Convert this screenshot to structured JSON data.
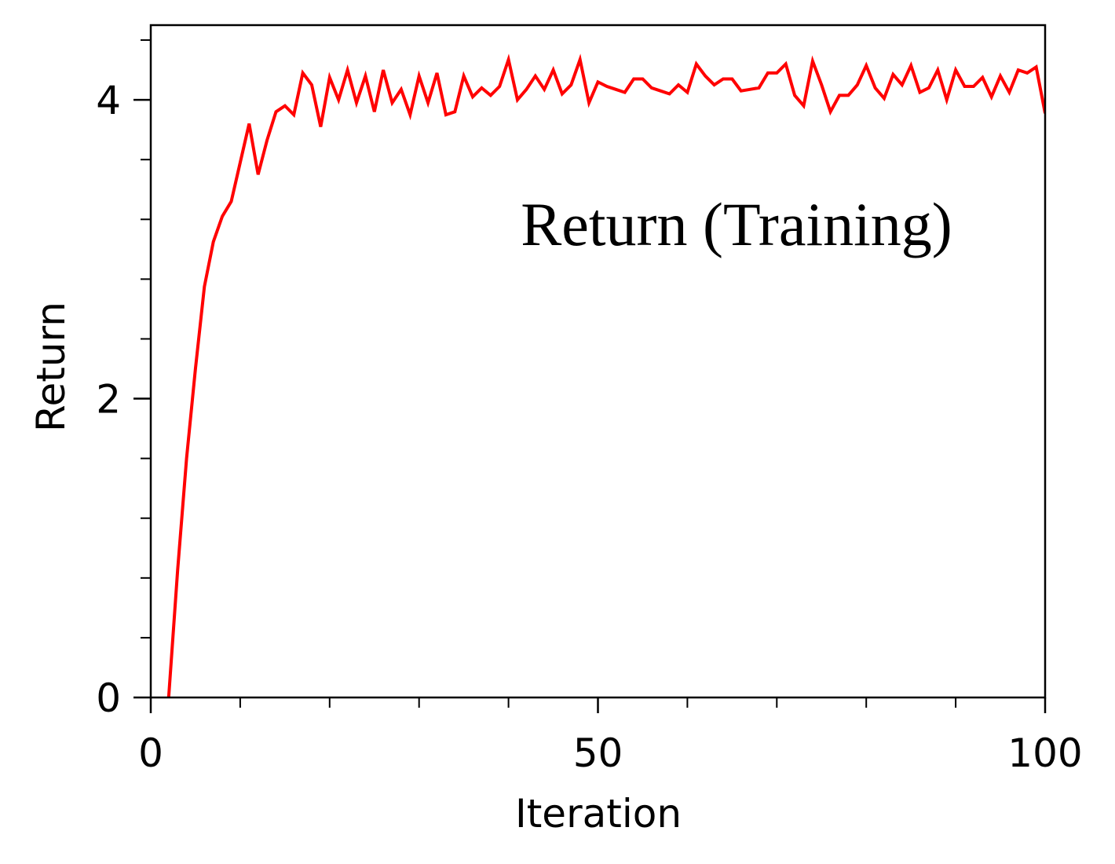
{
  "chart_data": {
    "type": "line",
    "title": "",
    "xlabel": "Iteration",
    "ylabel": "Return",
    "annotation": "Return (Training)",
    "xlim": [
      0,
      100
    ],
    "ylim": [
      0,
      4.5
    ],
    "x_ticks": [
      0,
      50,
      100
    ],
    "x_tick_labels": [
      "0",
      "50",
      "100"
    ],
    "x_minor_ticks": [
      10,
      20,
      30,
      40,
      60,
      70,
      80,
      90
    ],
    "y_ticks": [
      0,
      2,
      4
    ],
    "y_tick_labels": [
      "0",
      "2",
      "4"
    ],
    "y_minor_ticks": [
      0.4,
      0.8,
      1.2,
      1.6,
      2.4,
      2.8,
      3.2,
      3.6,
      4.4
    ],
    "grid": false,
    "series": [
      {
        "color": "#ff0000",
        "x": [
          2,
          3,
          4,
          5,
          6,
          7,
          8,
          9,
          10,
          11,
          12,
          13,
          14,
          15,
          16,
          17,
          18,
          19,
          20,
          21,
          22,
          23,
          24,
          25,
          26,
          27,
          28,
          29,
          30,
          31,
          32,
          33,
          34,
          35,
          36,
          37,
          38,
          39,
          40,
          41,
          42,
          43,
          44,
          45,
          46,
          47,
          48,
          49,
          50,
          51,
          52,
          53,
          54,
          55,
          56,
          57,
          58,
          59,
          60,
          61,
          62,
          63,
          64,
          65,
          66,
          67,
          68,
          69,
          70,
          71,
          72,
          73,
          74,
          75,
          76,
          77,
          78,
          79,
          80,
          81,
          82,
          83,
          84,
          85,
          86,
          87,
          88,
          89,
          90,
          91,
          92,
          93,
          94,
          95,
          96,
          97,
          98,
          99,
          100
        ],
        "y": [
          0.0,
          0.85,
          1.6,
          2.2,
          2.75,
          3.05,
          3.22,
          3.32,
          3.58,
          3.84,
          3.5,
          3.73,
          3.92,
          3.96,
          3.9,
          4.18,
          4.1,
          3.82,
          4.15,
          4.0,
          4.2,
          3.98,
          4.16,
          3.92,
          4.2,
          3.98,
          4.07,
          3.9,
          4.16,
          3.98,
          4.18,
          3.9,
          3.92,
          4.16,
          4.02,
          4.08,
          4.03,
          4.09,
          4.27,
          4.0,
          4.07,
          4.16,
          4.07,
          4.2,
          4.04,
          4.1,
          4.27,
          3.98,
          4.12,
          4.09,
          4.07,
          4.05,
          4.14,
          4.14,
          4.08,
          4.06,
          4.04,
          4.1,
          4.05,
          4.24,
          4.16,
          4.1,
          4.14,
          4.14,
          4.06,
          4.07,
          4.08,
          4.18,
          4.18,
          4.24,
          4.03,
          3.96,
          4.26,
          4.1,
          3.92,
          4.03,
          4.03,
          4.1,
          4.23,
          4.08,
          4.01,
          4.17,
          4.1,
          4.23,
          4.05,
          4.08,
          4.2,
          4.0,
          4.2,
          4.09,
          4.09,
          4.15,
          4.02,
          4.16,
          4.05,
          4.2,
          4.18,
          4.22,
          3.91
        ]
      }
    ]
  }
}
